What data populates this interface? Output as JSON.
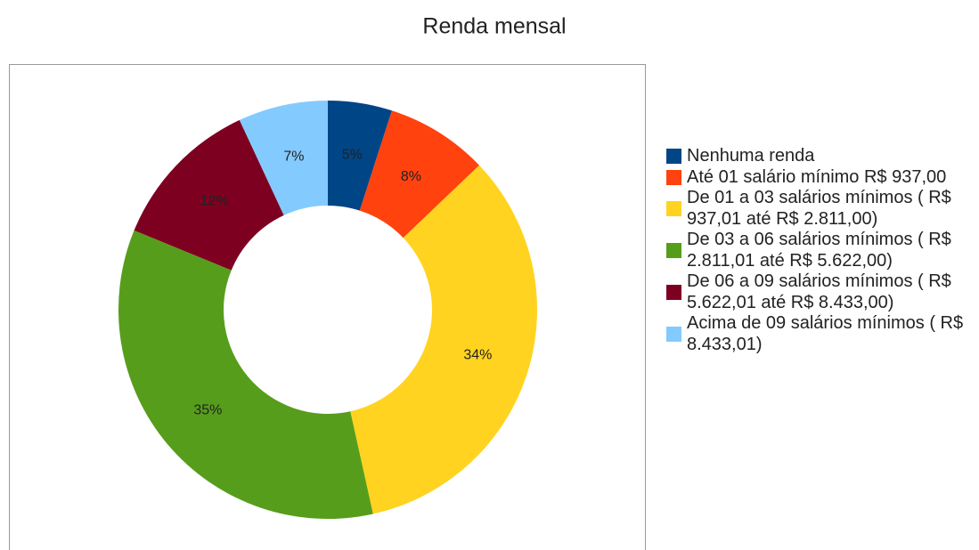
{
  "chart_data": {
    "type": "donut",
    "title": "Renda mensal",
    "categories": [
      "Nenhuma renda",
      "Até 01 salário mínimo R$ 937,00",
      "De 01 a 03 salários mínimos ( R$ 937,01 até R$ 2.811,00)",
      "De 03 a 06 salários mínimos ( R$ 2.811,01 até R$ 5.622,00)",
      "De 06 a 09 salários mínimos ( R$ 5.622,01 até R$ 8.433,00)",
      "Acima de 09 salários mínimos ( R$ 8.433,01)"
    ],
    "values": [
      5,
      8,
      34,
      35,
      12,
      7
    ],
    "value_labels": [
      "5%",
      "8%",
      "34%",
      "35%",
      "12%",
      "7%"
    ],
    "colors": [
      "#004586",
      "#ff420e",
      "#ffd320",
      "#579d1c",
      "#7e0021",
      "#83caff"
    ],
    "legend": "right"
  }
}
